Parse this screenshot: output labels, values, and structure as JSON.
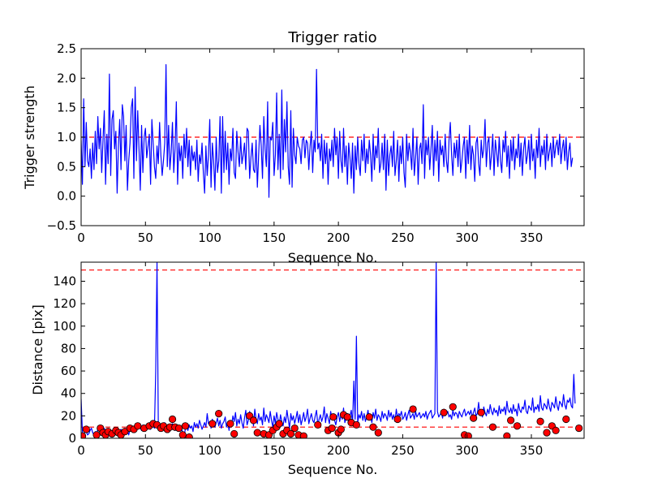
{
  "chart_data": [
    {
      "type": "line",
      "title": "Trigger ratio",
      "xlabel": "Sequence No.",
      "ylabel": "Trigger strength",
      "xlim": [
        0,
        391
      ],
      "ylim": [
        -0.5,
        2.5
      ],
      "xticks": [
        "0",
        "50",
        "100",
        "150",
        "200",
        "250",
        "300",
        "350"
      ],
      "yticks": [
        "−0.5",
        "0.0",
        "0.5",
        "1.0",
        "1.5",
        "2.0",
        "2.5"
      ],
      "grid": false,
      "colors": {
        "series": "#0000ff",
        "reference": "#ff0000"
      },
      "reference_line": {
        "y": 1.0,
        "style": "dashed"
      },
      "series": [
        {
          "x_start": 0,
          "x_step": 1,
          "values": [
            0.95,
            0.2,
            1.65,
            0.5,
            1.25,
            0.6,
            0.5,
            0.8,
            0.3,
            0.9,
            0.45,
            1.1,
            0.55,
            1.35,
            0.8,
            1.15,
            0.4,
            0.95,
            1.45,
            0.2,
            1.05,
            0.55,
            2.07,
            0.35,
            1.3,
            1.45,
            0.8,
            1.1,
            0.05,
            0.85,
            1.3,
            0.45,
            1.55,
            1.35,
            0.6,
            1.2,
            0.1,
            0.6,
            0.9,
            1.5,
            1.65,
            0.3,
            1.85,
            0.6,
            1.45,
            0.8,
            0.1,
            1.2,
            0.4,
            1.0,
            1.15,
            0.65,
            0.85,
            1.05,
            0.2,
            1.3,
            0.9,
            0.5,
            0.3,
            0.85,
            0.55,
            1.25,
            0.7,
            0.35,
            0.6,
            0.9,
            2.23,
            0.5,
            1.2,
            0.45,
            0.75,
            1.25,
            0.4,
            0.8,
            1.6,
            0.2,
            0.9,
            0.6,
            0.85,
            0.3,
            1.05,
            0.65,
            1.15,
            0.5,
            0.95,
            0.35,
            0.85,
            0.6,
            0.75,
            0.45,
            0.95,
            0.25,
            0.7,
            0.55,
            0.9,
            0.4,
            0.05,
            0.85,
            0.35,
            0.7,
            1.3,
            0.15,
            0.9,
            0.6,
            0.1,
            1.0,
            0.4,
            0.6,
            1.35,
            0.05,
            1.35,
            0.4,
            1.1,
            0.45,
            0.9,
            0.2,
            0.8,
            0.6,
            1.15,
            0.4,
            0.3,
            1.1,
            0.75,
            0.5,
            1.0,
            0.55,
            0.7,
            0.9,
            0.45,
            1.15,
            1.1,
            0.3,
            0.65,
            0.9,
            0.45,
            0.4,
            0.95,
            0.15,
            0.7,
            1.2,
            0.85,
            0.3,
            1.35,
            0.8,
            0.5,
            1.6,
            -0.02,
            1.0,
            0.95,
            1.25,
            0.35,
            0.7,
            1.75,
            0.45,
            1.05,
            0.3,
            1.8,
            0.45,
            1.3,
            0.75,
            1.6,
            0.5,
            0.2,
            1.45,
            0.15,
            1.15,
            0.7,
            0.55,
            1.0,
            0.85,
            0.8,
            0.55,
            0.95,
            1.0,
            0.65,
            0.95,
            0.9,
            0.45,
            0.85,
            1.1,
            0.4,
            0.95,
            0.75,
            2.15,
            0.8,
            0.9,
            0.6,
            1.05,
            0.3,
            0.95,
            0.55,
            0.9,
            0.2,
            0.8,
            0.6,
            0.95,
            0.5,
            1.15,
            0.7,
            1.0,
            0.3,
            1.1,
            0.6,
            0.4,
            1.15,
            0.5,
            0.85,
            0.2,
            0.9,
            0.65,
            0.3,
            0.9,
            0.05,
            0.85,
            0.45,
            1.0,
            0.55,
            0.35,
            0.95,
            0.6,
            1.05,
            0.4,
            0.8,
            0.55,
            0.95,
            0.7,
            0.25,
            1.05,
            0.45,
            0.85,
            0.65,
            1.15,
            0.4,
            0.55,
            0.9,
            0.45,
            1.05,
            0.1,
            0.95,
            0.35,
            0.7,
            0.85,
            0.5,
            1.1,
            0.35,
            0.6,
            0.95,
            0.25,
            0.85,
            0.55,
            1.0,
            0.4,
            0.15,
            1.05,
            0.6,
            0.9,
            0.75,
            0.45,
            1.15,
            0.35,
            0.65,
            1.0,
            0.2,
            0.8,
            0.9,
            0.55,
            1.55,
            0.3,
            0.95,
            0.7,
            1.0,
            0.45,
            0.8,
            1.2,
            0.35,
            0.95,
            0.6,
            1.1,
            0.25,
            0.95,
            0.7,
            0.85,
            0.5,
            1.05,
            0.6,
            0.4,
            0.95,
            1.25,
            0.7,
            0.35,
            0.9,
            0.65,
            0.95,
            0.5,
            1.05,
            0.4,
            0.6,
            0.85,
            1.0,
            0.3,
            0.95,
            0.55,
            1.2,
            0.45,
            0.85,
            0.7,
            0.25,
            0.9,
            1.0,
            0.55,
            0.35,
            0.95,
            0.65,
            0.8,
            1.3,
            0.5,
            0.9,
            1.0,
            0.45,
            0.7,
            1.05,
            0.35,
            0.95,
            0.75,
            0.5,
            1.0,
            0.6,
            0.4,
            0.95,
            0.75,
            1.1,
            0.5,
            0.85,
            0.3,
            0.95,
            0.6,
            1.0,
            0.45,
            0.8,
            0.65,
            1.05,
            0.5,
            0.9,
            0.35,
            0.8,
            1.0,
            0.55,
            0.7,
            0.95,
            0.45,
            1.05,
            0.6,
            0.8,
            0.3,
            0.95,
            0.65,
            1.15,
            0.5,
            0.85,
            0.7,
            0.95,
            0.45,
            1.05,
            0.6,
            0.75,
            0.9,
            0.5,
            1.0,
            0.65,
            0.85,
            0.95,
            0.7,
            1.05,
            0.55,
            0.8,
            0.95,
            0.6,
            1.0,
            0.45,
            0.75,
            0.9,
            0.5,
            0.65
          ]
        }
      ]
    },
    {
      "type": "line",
      "title": "",
      "xlabel": "Sequence No.",
      "ylabel": "Distance [pix]",
      "xlim": [
        0,
        391
      ],
      "ylim": [
        0,
        157
      ],
      "xticks": [
        "0",
        "50",
        "100",
        "150",
        "200",
        "250",
        "300",
        "350"
      ],
      "yticks": [
        "0",
        "20",
        "40",
        "60",
        "80",
        "100",
        "120",
        "140"
      ],
      "grid": false,
      "colors": {
        "series": "#0000ff",
        "reference": "#ff0000",
        "markers": "#ff0000"
      },
      "reference_lines": [
        {
          "y": 150,
          "style": "dashed"
        },
        {
          "y": 10,
          "style": "dashed"
        }
      ],
      "series": [
        {
          "x_start": 0,
          "x_step": 1,
          "values": [
            35,
            5,
            2,
            8,
            6,
            3,
            4,
            7,
            9,
            5,
            3,
            6,
            4,
            8,
            10,
            5,
            3,
            7,
            9,
            4,
            6,
            8,
            5,
            3,
            7,
            4,
            9,
            6,
            5,
            3,
            7,
            8,
            4,
            6,
            9,
            5,
            7,
            3,
            8,
            10,
            6,
            9,
            7,
            11,
            8,
            10,
            9,
            7,
            12,
            8,
            11,
            9,
            13,
            10,
            8,
            12,
            11,
            9,
            60,
            157,
            12,
            9,
            11,
            8,
            10,
            14,
            9,
            12,
            10,
            8,
            11,
            13,
            9,
            7,
            12,
            10,
            8,
            11,
            9,
            5,
            2,
            8,
            10,
            7,
            12,
            9,
            11,
            6,
            14,
            10,
            13,
            9,
            16,
            12,
            8,
            11,
            14,
            10,
            22,
            13,
            15,
            9,
            17,
            12,
            10,
            14,
            18,
            11,
            16,
            9,
            13,
            15,
            19,
            10,
            14,
            7,
            16,
            12,
            20,
            15,
            23,
            11,
            17,
            13,
            21,
            14,
            9,
            18,
            25,
            12,
            16,
            24,
            15,
            20,
            11,
            26,
            17,
            13,
            22,
            16,
            19,
            12,
            27,
            15,
            21,
            18,
            14,
            24,
            16,
            10,
            20,
            13,
            23,
            17,
            12,
            21,
            15,
            11,
            19,
            14,
            25,
            17,
            9,
            22,
            16,
            20,
            13,
            18,
            24,
            14,
            21,
            12,
            17,
            23,
            15,
            19,
            26,
            13,
            18,
            22,
            16,
            14,
            20,
            25,
            12,
            17,
            21,
            15,
            19,
            28,
            14,
            22,
            18,
            13,
            24,
            17,
            20,
            16,
            12,
            19,
            23,
            15,
            21,
            17,
            27,
            14,
            18,
            22,
            16,
            20,
            25,
            13,
            51,
            17,
            91,
            14,
            21,
            18,
            24,
            16,
            22,
            15,
            19,
            25,
            17,
            20,
            14,
            23,
            18,
            26,
            16,
            21,
            19,
            15,
            24,
            18,
            22,
            20,
            16,
            25,
            19,
            23,
            17,
            21,
            15,
            26,
            18,
            22,
            20,
            24,
            17,
            19,
            23,
            16,
            21,
            25,
            18,
            20,
            22,
            17,
            24,
            19,
            21,
            23,
            18,
            20,
            22,
            19,
            24,
            17,
            21,
            23,
            25,
            18,
            20,
            22,
            157,
            24,
            19,
            21,
            23,
            18,
            26,
            20,
            22,
            24,
            19,
            21,
            17,
            25,
            20,
            23,
            22,
            18,
            24,
            21,
            19,
            23,
            26,
            20,
            22,
            24,
            21,
            25,
            19,
            23,
            27,
            20,
            22,
            32,
            21,
            25,
            19,
            28,
            23,
            20,
            26,
            22,
            30,
            24,
            21,
            27,
            23,
            25,
            20,
            29,
            22,
            26,
            24,
            28,
            21,
            33,
            25,
            23,
            27,
            22,
            30,
            24,
            26,
            20,
            31,
            25,
            23,
            28,
            26,
            34,
            24,
            22,
            29,
            27,
            25,
            36,
            23,
            28,
            26,
            30,
            24,
            38,
            27,
            25,
            31,
            29,
            26,
            35,
            28,
            24,
            32,
            30,
            27,
            37,
            29,
            25,
            33,
            31,
            28,
            39,
            30,
            26,
            34,
            32,
            36,
            29,
            27,
            57,
            31
          ]
        },
        {
          "name": "",
          "kind": "markers",
          "points": [
            [
              1,
              2
            ],
            [
              4,
              8
            ],
            [
              12,
              3
            ],
            [
              15,
              9
            ],
            [
              17,
              5
            ],
            [
              19,
              3
            ],
            [
              21,
              6
            ],
            [
              24,
              4
            ],
            [
              27,
              7
            ],
            [
              29,
              5
            ],
            [
              31,
              3
            ],
            [
              34,
              6
            ],
            [
              38,
              9
            ],
            [
              41,
              8
            ],
            [
              44,
              11
            ],
            [
              49,
              9
            ],
            [
              53,
              11
            ],
            [
              56,
              13
            ],
            [
              59,
              12
            ],
            [
              62,
              9
            ],
            [
              64,
              11
            ],
            [
              67,
              8
            ],
            [
              69,
              10
            ],
            [
              71,
              17
            ],
            [
              73,
              10
            ],
            [
              76,
              9
            ],
            [
              79,
              3
            ],
            [
              81,
              11
            ],
            [
              84,
              1
            ],
            [
              102,
              13
            ],
            [
              107,
              22
            ],
            [
              116,
              13
            ],
            [
              119,
              4
            ],
            [
              131,
              20
            ],
            [
              134,
              16
            ],
            [
              137,
              5
            ],
            [
              142,
              4
            ],
            [
              146,
              3
            ],
            [
              149,
              7
            ],
            [
              152,
              10
            ],
            [
              154,
              13
            ],
            [
              157,
              4
            ],
            [
              160,
              7
            ],
            [
              163,
              4
            ],
            [
              166,
              9
            ],
            [
              169,
              3
            ],
            [
              173,
              2
            ],
            [
              184,
              12
            ],
            [
              192,
              7
            ],
            [
              195,
              9
            ],
            [
              196,
              19
            ],
            [
              200,
              5
            ],
            [
              202,
              8
            ],
            [
              204,
              21
            ],
            [
              207,
              19
            ],
            [
              210,
              14
            ],
            [
              214,
              12
            ],
            [
              224,
              19
            ],
            [
              227,
              10
            ],
            [
              231,
              5
            ],
            [
              246,
              17
            ],
            [
              258,
              26
            ],
            [
              282,
              23
            ],
            [
              289,
              28
            ],
            [
              298,
              3
            ],
            [
              301,
              2
            ],
            [
              305,
              18
            ],
            [
              311,
              23
            ],
            [
              320,
              10
            ],
            [
              331,
              2
            ],
            [
              334,
              16
            ],
            [
              339,
              11
            ],
            [
              357,
              15
            ],
            [
              362,
              5
            ],
            [
              366,
              11
            ],
            [
              369,
              7
            ],
            [
              377,
              17
            ],
            [
              387,
              9
            ]
          ]
        }
      ]
    }
  ]
}
